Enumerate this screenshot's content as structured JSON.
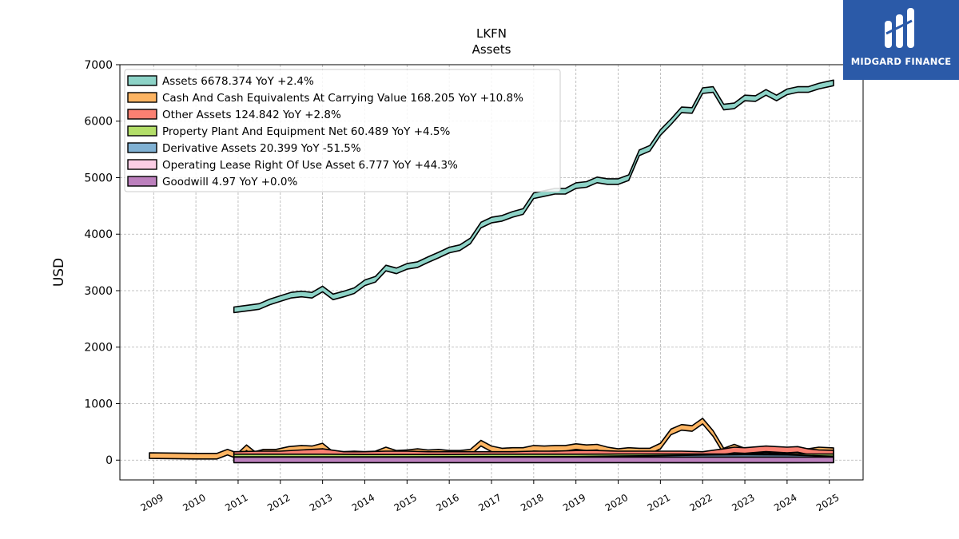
{
  "brand": {
    "name": "MIDGARD FINANCE",
    "bg": "#2b5aa8"
  },
  "chart_data": {
    "type": "area",
    "title": "LKFN",
    "subtitle": "Assets",
    "xlabel": "",
    "ylabel": "USD",
    "ylim": [
      -350,
      7000
    ],
    "xlim": [
      2008.2,
      2025.8
    ],
    "yticks": [
      0,
      1000,
      2000,
      3000,
      4000,
      5000,
      6000,
      7000
    ],
    "xticks": [
      "2009",
      "2010",
      "2011",
      "2012",
      "2013",
      "2014",
      "2015",
      "2016",
      "2017",
      "2018",
      "2019",
      "2020",
      "2021",
      "2022",
      "2023",
      "2024",
      "2025"
    ],
    "grid": true,
    "legend_position": "top-left",
    "series": [
      {
        "name": "Assets",
        "legend": "Assets  6678.374 YoY +2.4%",
        "color": "#8dd3c7",
        "points": [
          [
            2010.9,
            2660
          ],
          [
            2011.2,
            2690
          ],
          [
            2011.5,
            2720
          ],
          [
            2011.75,
            2800
          ],
          [
            2012.0,
            2860
          ],
          [
            2012.25,
            2920
          ],
          [
            2012.5,
            2940
          ],
          [
            2012.75,
            2920
          ],
          [
            2013.0,
            3030
          ],
          [
            2013.25,
            2890
          ],
          [
            2013.5,
            2940
          ],
          [
            2013.75,
            3000
          ],
          [
            2014.0,
            3140
          ],
          [
            2014.25,
            3200
          ],
          [
            2014.5,
            3400
          ],
          [
            2014.75,
            3350
          ],
          [
            2015.0,
            3430
          ],
          [
            2015.25,
            3460
          ],
          [
            2015.5,
            3550
          ],
          [
            2015.75,
            3630
          ],
          [
            2016.0,
            3720
          ],
          [
            2016.25,
            3760
          ],
          [
            2016.5,
            3880
          ],
          [
            2016.75,
            4160
          ],
          [
            2017.0,
            4250
          ],
          [
            2017.25,
            4280
          ],
          [
            2017.5,
            4350
          ],
          [
            2017.75,
            4400
          ],
          [
            2018.0,
            4680
          ],
          [
            2018.25,
            4720
          ],
          [
            2018.5,
            4760
          ],
          [
            2018.75,
            4760
          ],
          [
            2019.0,
            4860
          ],
          [
            2019.25,
            4880
          ],
          [
            2019.5,
            4960
          ],
          [
            2019.75,
            4930
          ],
          [
            2020.0,
            4930
          ],
          [
            2020.25,
            5000
          ],
          [
            2020.5,
            5440
          ],
          [
            2020.75,
            5520
          ],
          [
            2021.0,
            5800
          ],
          [
            2021.25,
            5990
          ],
          [
            2021.5,
            6200
          ],
          [
            2021.75,
            6190
          ],
          [
            2022.0,
            6540
          ],
          [
            2022.25,
            6560
          ],
          [
            2022.5,
            6250
          ],
          [
            2022.75,
            6270
          ],
          [
            2023.0,
            6410
          ],
          [
            2023.25,
            6400
          ],
          [
            2023.5,
            6510
          ],
          [
            2023.75,
            6410
          ],
          [
            2024.0,
            6520
          ],
          [
            2024.25,
            6560
          ],
          [
            2024.5,
            6560
          ],
          [
            2024.75,
            6620
          ],
          [
            2025.1,
            6678
          ]
        ]
      },
      {
        "name": "Cash And Cash Equivalents At Carrying Value",
        "legend": "Cash And Cash Equivalents At Carrying Value  168.205 YoY +10.8%",
        "color": "#fdb462",
        "points": [
          [
            2008.9,
            80
          ],
          [
            2009.5,
            75
          ],
          [
            2010.0,
            70
          ],
          [
            2010.5,
            70
          ],
          [
            2010.75,
            140
          ],
          [
            2010.9,
            100
          ],
          [
            2011.0,
            80
          ],
          [
            2011.2,
            220
          ],
          [
            2011.4,
            100
          ],
          [
            2011.6,
            140
          ],
          [
            2011.9,
            140
          ],
          [
            2012.2,
            190
          ],
          [
            2012.5,
            210
          ],
          [
            2012.75,
            200
          ],
          [
            2013.0,
            250
          ],
          [
            2013.25,
            100
          ],
          [
            2013.5,
            100
          ],
          [
            2013.75,
            110
          ],
          [
            2014.0,
            100
          ],
          [
            2014.25,
            110
          ],
          [
            2014.5,
            180
          ],
          [
            2014.75,
            120
          ],
          [
            2015.0,
            130
          ],
          [
            2015.25,
            150
          ],
          [
            2015.5,
            130
          ],
          [
            2015.75,
            140
          ],
          [
            2016.0,
            120
          ],
          [
            2016.25,
            120
          ],
          [
            2016.5,
            140
          ],
          [
            2016.75,
            300
          ],
          [
            2017.0,
            200
          ],
          [
            2017.25,
            160
          ],
          [
            2017.5,
            170
          ],
          [
            2017.75,
            170
          ],
          [
            2018.0,
            210
          ],
          [
            2018.25,
            200
          ],
          [
            2018.5,
            210
          ],
          [
            2018.75,
            210
          ],
          [
            2019.0,
            240
          ],
          [
            2019.25,
            220
          ],
          [
            2019.5,
            230
          ],
          [
            2019.75,
            180
          ],
          [
            2020.0,
            150
          ],
          [
            2020.25,
            170
          ],
          [
            2020.5,
            160
          ],
          [
            2020.75,
            160
          ],
          [
            2021.0,
            250
          ],
          [
            2021.25,
            500
          ],
          [
            2021.5,
            580
          ],
          [
            2021.75,
            560
          ],
          [
            2022.0,
            690
          ],
          [
            2022.25,
            470
          ],
          [
            2022.5,
            160
          ],
          [
            2022.75,
            230
          ],
          [
            2023.0,
            160
          ],
          [
            2023.25,
            170
          ],
          [
            2023.5,
            180
          ],
          [
            2023.75,
            170
          ],
          [
            2024.0,
            160
          ],
          [
            2024.25,
            160
          ],
          [
            2024.5,
            150
          ],
          [
            2024.75,
            180
          ],
          [
            2025.1,
            168
          ]
        ]
      },
      {
        "name": "Other Assets",
        "legend": "Other Assets  124.842 YoY +2.8%",
        "color": "#fb8072",
        "points": [
          [
            2010.9,
            100
          ],
          [
            2011.5,
            110
          ],
          [
            2012.0,
            110
          ],
          [
            2012.5,
            130
          ],
          [
            2013.0,
            150
          ],
          [
            2013.5,
            100
          ],
          [
            2014.0,
            100
          ],
          [
            2014.5,
            110
          ],
          [
            2015.0,
            110
          ],
          [
            2015.5,
            100
          ],
          [
            2016.0,
            100
          ],
          [
            2016.5,
            100
          ],
          [
            2017.0,
            100
          ],
          [
            2017.5,
            100
          ],
          [
            2018.0,
            110
          ],
          [
            2018.5,
            110
          ],
          [
            2019.0,
            120
          ],
          [
            2019.5,
            120
          ],
          [
            2020.0,
            110
          ],
          [
            2020.5,
            110
          ],
          [
            2021.0,
            110
          ],
          [
            2021.5,
            110
          ],
          [
            2022.0,
            100
          ],
          [
            2022.5,
            150
          ],
          [
            2022.75,
            180
          ],
          [
            2023.0,
            170
          ],
          [
            2023.5,
            200
          ],
          [
            2023.75,
            190
          ],
          [
            2024.0,
            180
          ],
          [
            2024.25,
            190
          ],
          [
            2024.5,
            150
          ],
          [
            2024.75,
            130
          ],
          [
            2025.1,
            125
          ]
        ]
      },
      {
        "name": "Property Plant And Equipment Net",
        "legend": "Property Plant And Equipment Net  60.489 YoY +4.5%",
        "color": "#b3de69",
        "points": [
          [
            2010.9,
            55
          ],
          [
            2012.0,
            55
          ],
          [
            2013.0,
            55
          ],
          [
            2014.0,
            50
          ],
          [
            2015.0,
            50
          ],
          [
            2016.0,
            50
          ],
          [
            2017.0,
            55
          ],
          [
            2018.0,
            55
          ],
          [
            2019.0,
            55
          ],
          [
            2020.0,
            58
          ],
          [
            2021.0,
            58
          ],
          [
            2022.0,
            58
          ],
          [
            2023.0,
            58
          ],
          [
            2024.0,
            58
          ],
          [
            2025.1,
            60
          ]
        ]
      },
      {
        "name": "Derivative Assets",
        "legend": "Derivative Assets  20.399 YoY -51.5%",
        "color": "#80b1d3",
        "points": [
          [
            2010.9,
            10
          ],
          [
            2015.0,
            10
          ],
          [
            2019.0,
            15
          ],
          [
            2020.0,
            25
          ],
          [
            2021.0,
            30
          ],
          [
            2022.0,
            40
          ],
          [
            2023.0,
            45
          ],
          [
            2024.0,
            42
          ],
          [
            2025.1,
            20
          ]
        ]
      },
      {
        "name": "Operating Lease Right Of Use Asset",
        "legend": "Operating Lease Right Of Use Asset  6.777 YoY +44.3%",
        "color": "#fccde5",
        "points": [
          [
            2019.0,
            8
          ],
          [
            2020.0,
            7
          ],
          [
            2021.0,
            6
          ],
          [
            2022.0,
            5
          ],
          [
            2023.0,
            5
          ],
          [
            2024.0,
            5
          ],
          [
            2025.1,
            7
          ]
        ]
      },
      {
        "name": "Goodwill",
        "legend": "Goodwill  4.97 YoY +0.0%",
        "color": "#bc80bd",
        "points": [
          [
            2010.9,
            5
          ],
          [
            2025.1,
            5
          ]
        ]
      }
    ]
  }
}
